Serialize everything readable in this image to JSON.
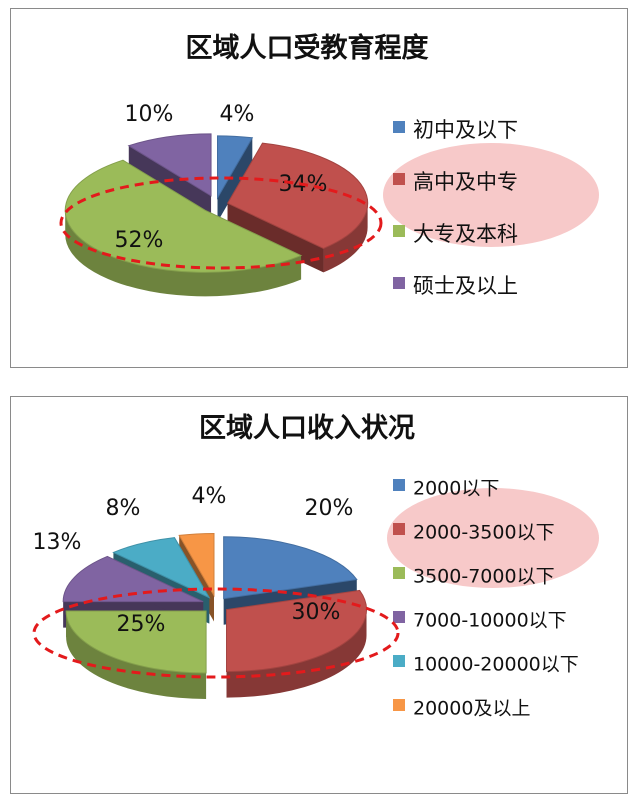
{
  "chart_data": [
    {
      "type": "pie",
      "title": "区域人口受教育程度",
      "categories": [
        "初中及以下",
        "高中及中专",
        "大专及本科",
        "硕士及以上"
      ],
      "values": [
        4,
        34,
        52,
        10
      ],
      "value_labels": [
        "4%",
        "34%",
        "52%",
        "10%"
      ],
      "colors": [
        "#4f81bd",
        "#c0504d",
        "#9bbb59",
        "#8064a2"
      ],
      "legend_position": "right",
      "highlighted_category": "高中及中专"
    },
    {
      "type": "pie",
      "title": "区域人口收入状况",
      "categories": [
        "2000以下",
        "2000-3500以下",
        "3500-7000以下",
        "7000-10000以下",
        "10000-20000以下",
        "20000及以上"
      ],
      "values": [
        20,
        30,
        25,
        13,
        8,
        4
      ],
      "value_labels": [
        "20%",
        "30%",
        "25%",
        "13%",
        "8%",
        "4%"
      ],
      "colors": [
        "#4f81bd",
        "#c0504d",
        "#9bbb59",
        "#8064a2",
        "#4bacc6",
        "#f79646"
      ],
      "legend_colors": [
        "#4f81bd",
        "#c0504d",
        "#9bbb59",
        "#8064a2",
        "#4bacc6",
        "#f79646"
      ],
      "legend_position": "right",
      "highlighted_category": "2000-3500以下"
    }
  ]
}
